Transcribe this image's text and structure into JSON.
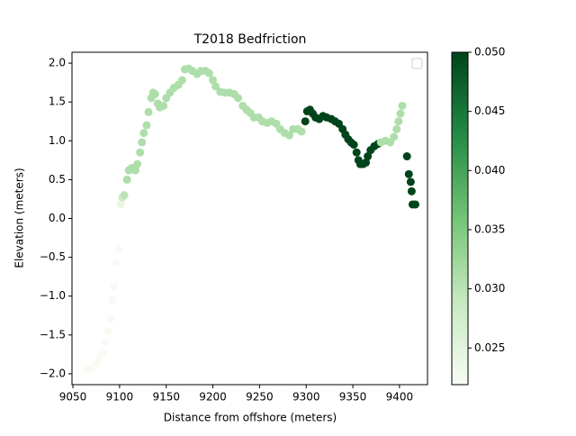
{
  "chart_data": {
    "type": "scatter",
    "title": "T2018 Bedfriction",
    "x_label": "Distance from offshore (meters)",
    "y_label": "Elevation (meters)",
    "xlim": [
      9049,
      9430
    ],
    "ylim": [
      -2.14,
      2.14
    ],
    "xticks": [
      9050,
      9100,
      9150,
      9200,
      9250,
      9300,
      9350,
      9400
    ],
    "yticks": [
      {
        "value": -2,
        "label": "−2.0"
      },
      {
        "value": -1.5,
        "label": "−1.5"
      },
      {
        "value": -1,
        "label": "−1.0"
      },
      {
        "value": -0.5,
        "label": "−0.5"
      },
      {
        "value": 0,
        "label": "0.0"
      },
      {
        "value": 0.5,
        "label": "0.5"
      },
      {
        "value": 1,
        "label": "1.0"
      },
      {
        "value": 1.5,
        "label": "1.5"
      },
      {
        "value": 2,
        "label": "2.0"
      }
    ],
    "colormap": [
      "#f7fcf5",
      "#c7e9c0",
      "#74c476",
      "#238b45",
      "#00441b"
    ],
    "clim": [
      0.0219,
      0.05
    ],
    "cticks": [
      {
        "value": 0.025,
        "label": "0.025"
      },
      {
        "value": 0.03,
        "label": "0.030"
      },
      {
        "value": 0.035,
        "label": "0.035"
      },
      {
        "value": 0.04,
        "label": "0.040"
      },
      {
        "value": 0.045,
        "label": "0.045"
      },
      {
        "value": 0.05,
        "label": "0.050"
      }
    ],
    "legend": "upper right",
    "x": [
      9065,
      9070,
      9075,
      9078,
      9082,
      9085,
      9088,
      9090,
      9092,
      9094,
      9096,
      9099,
      9101,
      9103,
      9105,
      9108,
      9110,
      9113,
      9117,
      9119,
      9122,
      9124,
      9126,
      9129,
      9131,
      9134,
      9136,
      9138,
      9141,
      9143,
      9147,
      9150,
      9154,
      9158,
      9163,
      9167,
      9170,
      9174,
      9178,
      9183,
      9187,
      9192,
      9196,
      9200,
      9203,
      9208,
      9213,
      9218,
      9223,
      9227,
      9232,
      9236,
      9240,
      9244,
      9249,
      9253,
      9258,
      9263,
      9268,
      9272,
      9277,
      9282,
      9286,
      9291,
      9295,
      9299,
      9301,
      9304,
      9307,
      9310,
      9314,
      9318,
      9322,
      9327,
      9331,
      9335,
      9339,
      9342,
      9345,
      9348,
      9351,
      9354,
      9356,
      9358,
      9361,
      9364,
      9366,
      9369,
      9373,
      9377,
      9380,
      9385,
      9390,
      9394,
      9397,
      9399,
      9401,
      9403,
      9408,
      9410,
      9412,
      9413,
      9414,
      9417
    ],
    "y": [
      -1.95,
      -1.93,
      -1.88,
      -1.82,
      -1.72,
      -1.6,
      -1.45,
      -1.3,
      -1.05,
      -0.88,
      -0.57,
      -0.4,
      0.18,
      0.27,
      0.3,
      0.5,
      0.62,
      0.65,
      0.62,
      0.7,
      0.85,
      0.98,
      1.1,
      1.2,
      1.37,
      1.55,
      1.62,
      1.6,
      1.48,
      1.43,
      1.45,
      1.55,
      1.62,
      1.68,
      1.72,
      1.78,
      1.92,
      1.93,
      1.9,
      1.86,
      1.9,
      1.9,
      1.87,
      1.78,
      1.7,
      1.63,
      1.62,
      1.62,
      1.6,
      1.55,
      1.45,
      1.4,
      1.36,
      1.3,
      1.3,
      1.25,
      1.23,
      1.25,
      1.22,
      1.15,
      1.1,
      1.07,
      1.15,
      1.15,
      1.12,
      1.25,
      1.38,
      1.4,
      1.35,
      1.3,
      1.28,
      1.32,
      1.3,
      1.28,
      1.25,
      1.22,
      1.15,
      1.08,
      1.02,
      0.98,
      0.95,
      0.85,
      0.75,
      0.7,
      0.7,
      0.72,
      0.8,
      0.88,
      0.93,
      0.96,
      0.98,
      1.0,
      0.98,
      1.05,
      1.15,
      1.25,
      1.35,
      1.45,
      0.8,
      0.57,
      0.47,
      0.35,
      0.18,
      0.18
    ],
    "c": [
      0.022,
      0.022,
      0.022,
      0.022,
      0.022,
      0.022,
      0.022,
      0.022,
      0.022,
      0.022,
      0.022,
      0.022,
      0.024,
      0.028,
      0.03,
      0.031,
      0.031,
      0.031,
      0.031,
      0.031,
      0.031,
      0.031,
      0.031,
      0.031,
      0.031,
      0.031,
      0.031,
      0.031,
      0.031,
      0.031,
      0.031,
      0.031,
      0.031,
      0.031,
      0.031,
      0.031,
      0.031,
      0.031,
      0.031,
      0.031,
      0.031,
      0.031,
      0.031,
      0.031,
      0.031,
      0.031,
      0.031,
      0.031,
      0.031,
      0.031,
      0.031,
      0.031,
      0.031,
      0.031,
      0.031,
      0.031,
      0.031,
      0.031,
      0.031,
      0.031,
      0.031,
      0.031,
      0.031,
      0.031,
      0.031,
      0.05,
      0.05,
      0.05,
      0.05,
      0.05,
      0.05,
      0.05,
      0.05,
      0.05,
      0.05,
      0.05,
      0.05,
      0.05,
      0.05,
      0.05,
      0.05,
      0.05,
      0.05,
      0.05,
      0.05,
      0.05,
      0.05,
      0.05,
      0.05,
      0.05,
      0.031,
      0.031,
      0.031,
      0.031,
      0.031,
      0.031,
      0.031,
      0.031,
      0.05,
      0.05,
      0.05,
      0.05,
      0.05,
      0.05
    ]
  }
}
